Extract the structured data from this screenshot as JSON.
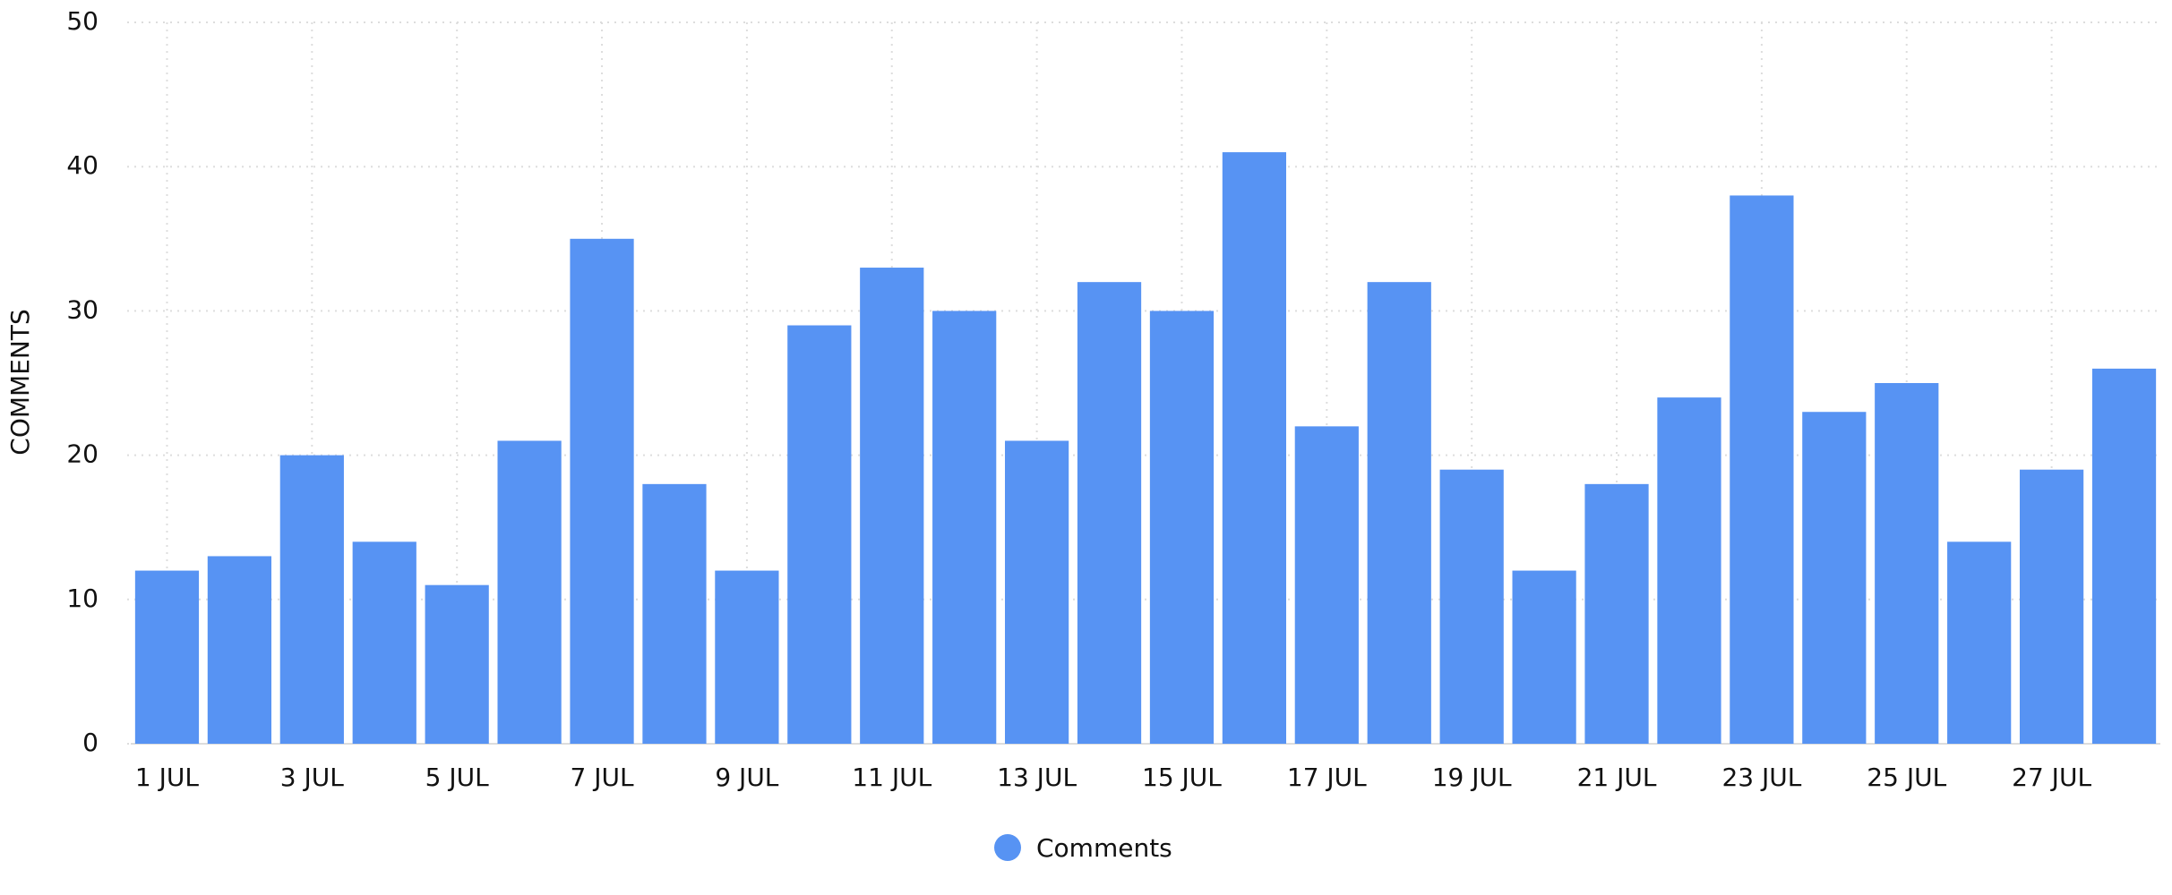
{
  "chart_data": {
    "type": "bar",
    "y_label": "COMMENTS",
    "categories": [
      "1 JUL",
      null,
      "3 JUL",
      null,
      "5 JUL",
      null,
      "7 JUL",
      null,
      "9 JUL",
      null,
      "11 JUL",
      null,
      "13 JUL",
      null,
      "15 JUL",
      null,
      "17 JUL",
      null,
      "19 JUL",
      null,
      "21 JUL",
      null,
      "23 JUL",
      null,
      "25 JUL",
      null,
      "27 JUL",
      null
    ],
    "series": [
      {
        "name": "Comments",
        "color": "#5793f3",
        "values": [
          12,
          13,
          20,
          14,
          11,
          21,
          35,
          18,
          12,
          29,
          33,
          30,
          21,
          32,
          30,
          41,
          22,
          32,
          19,
          12,
          18,
          24,
          38,
          23,
          25,
          14,
          19,
          26
        ]
      }
    ],
    "ylim": [
      0,
      50
    ],
    "yticks": [
      0,
      10,
      20,
      30,
      40,
      50
    ],
    "grid": true,
    "legend": "bottom"
  }
}
